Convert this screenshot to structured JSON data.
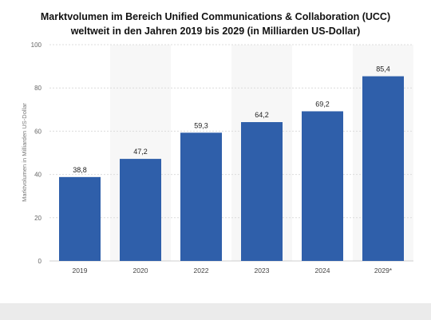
{
  "chart_data": {
    "type": "bar",
    "title_lines": [
      "Marktvolumen im Bereich Unified Communications & Collaboration (UCC)",
      "weltweit in den Jahren 2019 bis 2029 (in Milliarden US-Dollar)"
    ],
    "categories": [
      "2019",
      "2020",
      "2022",
      "2023",
      "2024",
      "2029*"
    ],
    "values": [
      38.8,
      47.2,
      59.3,
      64.2,
      69.2,
      85.4
    ],
    "value_labels": [
      "38,8",
      "47,2",
      "59,3",
      "64,2",
      "69,2",
      "85,4"
    ],
    "ylabel": "Marktvolumen in Milliarden US-Dollar",
    "ylim": [
      0,
      100
    ],
    "yticks": [
      0,
      20,
      40,
      60,
      80,
      100
    ],
    "grid": true,
    "legend": "none",
    "bar_color": "#2f5faa"
  }
}
